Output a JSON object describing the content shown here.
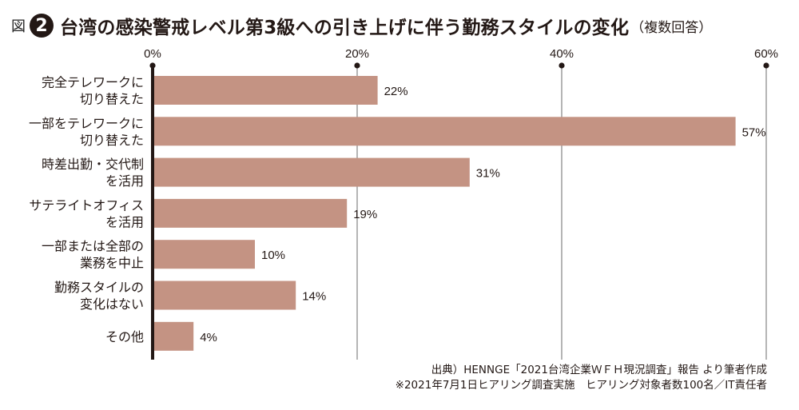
{
  "header": {
    "prefix": "図",
    "number": "2",
    "title": "台湾の感染警戒レベル第3級への引き上げに伴う勤務スタイルの変化",
    "subtitle": "（複数回答）"
  },
  "chart_data": {
    "type": "bar",
    "orientation": "horizontal",
    "categories": [
      [
        "完全テレワークに",
        "切り替えた"
      ],
      [
        "一部をテレワークに",
        "切り替えた"
      ],
      [
        "時差出勤・交代制",
        "を活用"
      ],
      [
        "サテライトオフィス",
        "を活用"
      ],
      [
        "一部または全部の",
        "業務を中止"
      ],
      [
        "勤務スタイルの",
        "変化はない"
      ],
      [
        "その他"
      ]
    ],
    "values": [
      22,
      57,
      31,
      19,
      10,
      14,
      4
    ],
    "value_labels": [
      "22%",
      "57%",
      "31%",
      "19%",
      "10%",
      "14%",
      "4%"
    ],
    "xlim": [
      0,
      60
    ],
    "xticks": [
      0,
      20,
      40,
      60
    ],
    "xtick_labels": [
      "0%",
      "20%",
      "40%",
      "60%"
    ],
    "grid": true,
    "bar_color": "#c49383",
    "axis_color": "#231815"
  },
  "footnotes": {
    "source": "出典）HENNGE「2021台湾企業ＷＦＨ現況調査」報告 より筆者作成",
    "note": "※2021年7月1日ヒアリング調査実施　ヒアリング対象者数100名／IT責任者"
  }
}
